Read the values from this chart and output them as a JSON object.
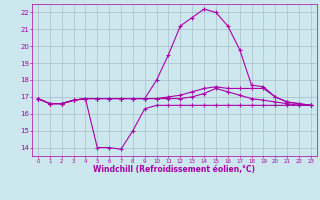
{
  "xlabel": "Windchill (Refroidissement éolien,°C)",
  "background_color": "#cce8ee",
  "grid_color": "#aabbcc",
  "line_color": "#aa00aa",
  "x_hours": [
    0,
    1,
    2,
    3,
    4,
    5,
    6,
    7,
    8,
    9,
    10,
    11,
    12,
    13,
    14,
    15,
    16,
    17,
    18,
    19,
    20,
    21,
    22,
    23
  ],
  "xlim": [
    -0.5,
    23.5
  ],
  "ylim": [
    13.5,
    22.5
  ],
  "yticks": [
    14,
    15,
    16,
    17,
    18,
    19,
    20,
    21,
    22
  ],
  "xticks": [
    0,
    1,
    2,
    3,
    4,
    5,
    6,
    7,
    8,
    9,
    10,
    11,
    12,
    13,
    14,
    15,
    16,
    17,
    18,
    19,
    20,
    21,
    22,
    23
  ],
  "line1": [
    16.9,
    16.6,
    16.6,
    16.8,
    16.9,
    14.0,
    14.0,
    13.9,
    15.0,
    16.3,
    16.5,
    16.5,
    16.5,
    16.5,
    16.5,
    16.5,
    16.5,
    16.5,
    16.5,
    16.5,
    16.5,
    16.5,
    16.5,
    16.5
  ],
  "line2": [
    16.9,
    16.6,
    16.6,
    16.8,
    16.9,
    16.9,
    16.9,
    16.9,
    16.9,
    16.9,
    16.9,
    17.0,
    17.1,
    17.3,
    17.5,
    17.6,
    17.5,
    17.5,
    17.5,
    17.5,
    17.0,
    16.7,
    16.6,
    16.5
  ],
  "line3": [
    16.9,
    16.6,
    16.6,
    16.8,
    16.9,
    16.9,
    16.9,
    16.9,
    16.9,
    16.9,
    18.0,
    19.5,
    21.2,
    21.7,
    22.2,
    22.0,
    21.2,
    19.8,
    17.7,
    17.6,
    17.0,
    16.7,
    16.6,
    16.5
  ],
  "line4": [
    16.9,
    16.6,
    16.6,
    16.8,
    16.9,
    16.9,
    16.9,
    16.9,
    16.9,
    16.9,
    16.9,
    16.9,
    16.9,
    17.0,
    17.2,
    17.5,
    17.3,
    17.1,
    16.9,
    16.8,
    16.7,
    16.6,
    16.5,
    16.5
  ]
}
